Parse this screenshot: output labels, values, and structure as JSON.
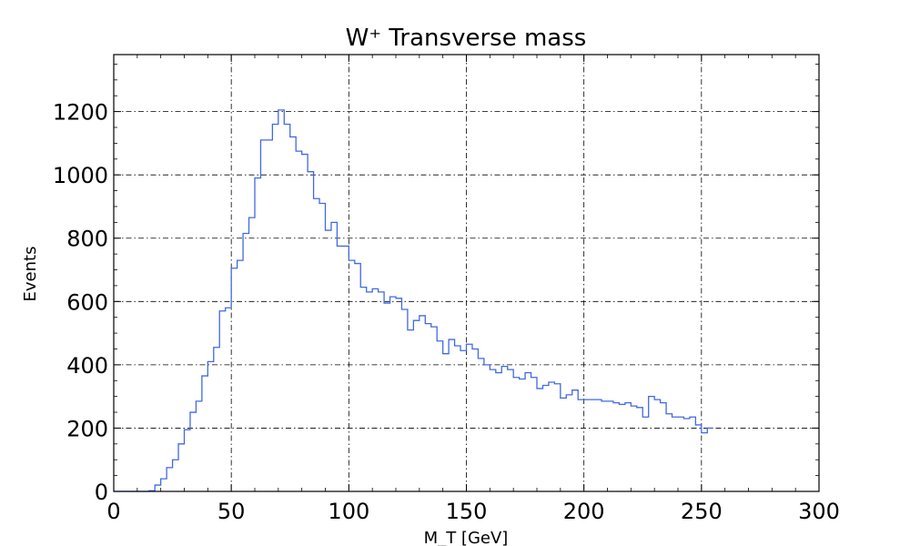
{
  "chart_data": {
    "type": "line",
    "style": "step-histogram",
    "title": "W⁺ Transverse mass",
    "xlabel": "M_T [GeV]",
    "ylabel": "Events",
    "xlim": [
      0,
      300
    ],
    "ylim": [
      0,
      1380
    ],
    "x_ticks": [
      0,
      50,
      100,
      150,
      200,
      250,
      300
    ],
    "y_ticks": [
      0,
      200,
      400,
      600,
      800,
      1000,
      1200
    ],
    "grid": true,
    "line_color": "#4169e1",
    "bin_width": 2.5,
    "bin_start": 0,
    "series": [
      {
        "values": [
          0,
          0,
          0,
          0,
          0,
          0,
          2,
          20,
          40,
          75,
          100,
          150,
          195,
          250,
          285,
          365,
          410,
          455,
          570,
          580,
          705,
          730,
          815,
          865,
          990,
          1110,
          1110,
          1160,
          1205,
          1160,
          1120,
          1075,
          1065,
          1010,
          925,
          910,
          825,
          850,
          775,
          775,
          730,
          720,
          645,
          630,
          640,
          630,
          595,
          615,
          610,
          575,
          510,
          540,
          555,
          530,
          520,
          475,
          435,
          480,
          460,
          445,
          465,
          450,
          420,
          400,
          385,
          375,
          395,
          385,
          360,
          355,
          375,
          360,
          325,
          335,
          345,
          340,
          295,
          305,
          320,
          290,
          290,
          290,
          290,
          285,
          285,
          280,
          275,
          280,
          270,
          265,
          235,
          300,
          290,
          280,
          245,
          235,
          235,
          230,
          235,
          210,
          185,
          200
        ]
      }
    ]
  }
}
